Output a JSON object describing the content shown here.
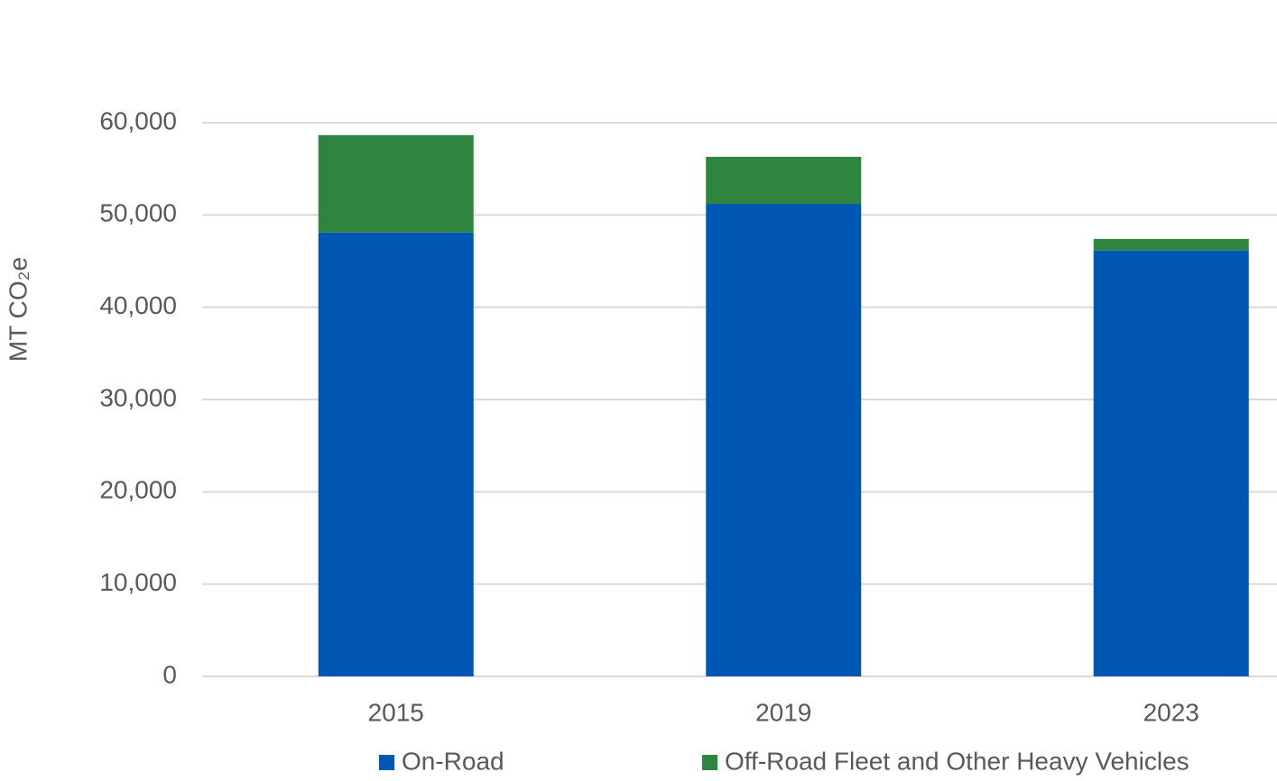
{
  "chart_data": {
    "type": "stacked-bar",
    "y_axis_label": "MT CO₂e",
    "categories": [
      "2015",
      "2019",
      "2023"
    ],
    "series": [
      {
        "name": "On-Road",
        "color": "#0057b3",
        "values": [
          48100,
          51200,
          46150
        ]
      },
      {
        "name": "Off-Road Fleet and Other Heavy Vehicles",
        "color": "#2e8540",
        "values": [
          10550,
          5100,
          1250
        ]
      }
    ],
    "ylim": [
      0,
      60000
    ],
    "yticks": [
      0,
      {
        "value": 10000,
        "label": "10,000"
      },
      {
        "value": 20000,
        "label": "20,000"
      },
      {
        "value": 30000,
        "label": "30,000"
      },
      {
        "value": 40000,
        "label": "40,000"
      },
      {
        "value": 50000,
        "label": "50,000"
      },
      {
        "value": 60000,
        "label": "60,000"
      }
    ],
    "grid": true,
    "legend": "bottom"
  }
}
